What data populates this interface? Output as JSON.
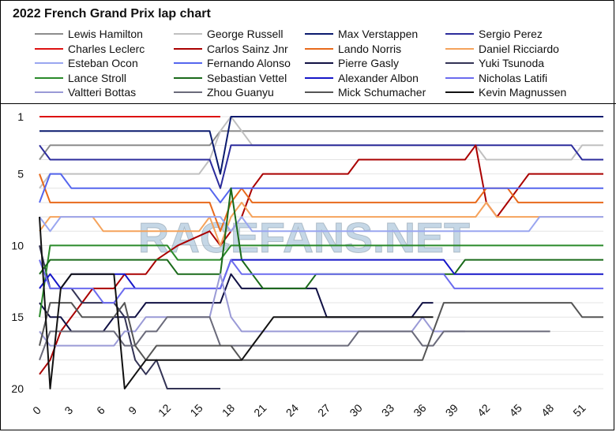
{
  "chart_data": {
    "type": "line",
    "title": "2022 French Grand Prix lap chart",
    "watermark": "RACEFANS.NET",
    "xlabel": "",
    "ylabel": "",
    "xlim": [
      0,
      53
    ],
    "ylim": [
      1,
      20
    ],
    "y_inverted": true,
    "x_ticks": [
      0,
      3,
      6,
      9,
      12,
      15,
      18,
      21,
      24,
      27,
      30,
      33,
      36,
      39,
      42,
      45,
      48,
      51
    ],
    "y_ticks": [
      1,
      5,
      10,
      15,
      20
    ],
    "grid": "horizontal",
    "legend_position": "top",
    "series": [
      {
        "name": "Lewis Hamilton",
        "color": "#8c8c8c",
        "points": [
          [
            0,
            4
          ],
          [
            1,
            3
          ],
          [
            16,
            3
          ],
          [
            17,
            2
          ],
          [
            53,
            2
          ]
        ]
      },
      {
        "name": "George Russell",
        "color": "#c0c0c0",
        "points": [
          [
            0,
            6
          ],
          [
            1,
            5
          ],
          [
            15,
            5
          ],
          [
            16,
            4
          ],
          [
            17,
            2
          ],
          [
            18,
            1
          ],
          [
            19,
            2
          ],
          [
            20,
            3
          ],
          [
            41,
            3
          ],
          [
            42,
            4
          ],
          [
            50,
            4
          ],
          [
            51,
            3
          ],
          [
            53,
            3
          ]
        ]
      },
      {
        "name": "Max Verstappen",
        "color": "#0a1a6e",
        "points": [
          [
            0,
            2
          ],
          [
            16,
            2
          ],
          [
            17,
            5
          ],
          [
            18,
            1
          ],
          [
            53,
            1
          ]
        ]
      },
      {
        "name": "Sergio Perez",
        "color": "#2c2c9c",
        "points": [
          [
            0,
            3
          ],
          [
            1,
            4
          ],
          [
            16,
            4
          ],
          [
            17,
            6
          ],
          [
            18,
            3
          ],
          [
            41,
            3
          ],
          [
            42,
            3
          ],
          [
            50,
            3
          ],
          [
            51,
            4
          ],
          [
            53,
            4
          ]
        ]
      },
      {
        "name": "Charles Leclerc",
        "color": "#dd1111",
        "points": [
          [
            0,
            1
          ],
          [
            17,
            1
          ]
        ]
      },
      {
        "name": "Carlos Sainz Jnr",
        "color": "#aa0000",
        "points": [
          [
            0,
            19
          ],
          [
            1,
            18
          ],
          [
            2,
            16
          ],
          [
            3,
            15
          ],
          [
            4,
            14
          ],
          [
            5,
            13
          ],
          [
            7,
            13
          ],
          [
            8,
            12
          ],
          [
            10,
            12
          ],
          [
            11,
            11
          ],
          [
            13,
            10
          ],
          [
            16,
            9
          ],
          [
            17,
            10
          ],
          [
            18,
            9
          ],
          [
            19,
            8
          ],
          [
            20,
            6
          ],
          [
            21,
            5
          ],
          [
            29,
            5
          ],
          [
            30,
            4
          ],
          [
            40,
            4
          ],
          [
            41,
            3
          ],
          [
            42,
            7
          ],
          [
            43,
            8
          ],
          [
            44,
            7
          ],
          [
            45,
            6
          ],
          [
            46,
            5
          ],
          [
            53,
            5
          ]
        ]
      },
      {
        "name": "Lando Norris",
        "color": "#e86a1c",
        "points": [
          [
            0,
            5
          ],
          [
            1,
            7
          ],
          [
            16,
            7
          ],
          [
            17,
            9
          ],
          [
            18,
            7
          ],
          [
            19,
            6
          ],
          [
            20,
            7
          ],
          [
            41,
            7
          ],
          [
            42,
            6
          ],
          [
            44,
            6
          ],
          [
            45,
            7
          ],
          [
            53,
            7
          ]
        ]
      },
      {
        "name": "Daniel Ricciardo",
        "color": "#f5a35c",
        "points": [
          [
            0,
            9
          ],
          [
            1,
            8
          ],
          [
            5,
            8
          ],
          [
            6,
            9
          ],
          [
            15,
            9
          ],
          [
            16,
            8
          ],
          [
            17,
            10
          ],
          [
            18,
            8
          ],
          [
            19,
            7
          ],
          [
            20,
            8
          ],
          [
            41,
            8
          ],
          [
            42,
            7
          ],
          [
            43,
            8
          ],
          [
            53,
            8
          ]
        ]
      },
      {
        "name": "Esteban Ocon",
        "color": "#9aa6f0",
        "points": [
          [
            0,
            8
          ],
          [
            1,
            9
          ],
          [
            2,
            8
          ],
          [
            17,
            8
          ],
          [
            18,
            9
          ],
          [
            19,
            8
          ],
          [
            20,
            9
          ],
          [
            46,
            9
          ],
          [
            47,
            8
          ],
          [
            53,
            8
          ]
        ]
      },
      {
        "name": "Fernando Alonso",
        "color": "#5566ee",
        "points": [
          [
            0,
            7
          ],
          [
            1,
            5
          ],
          [
            2,
            5
          ],
          [
            3,
            6
          ],
          [
            16,
            6
          ],
          [
            17,
            7
          ],
          [
            18,
            6
          ],
          [
            46,
            6
          ],
          [
            47,
            6
          ],
          [
            53,
            6
          ]
        ]
      },
      {
        "name": "Pierre Gasly",
        "color": "#111144",
        "points": [
          [
            0,
            14
          ],
          [
            1,
            15
          ],
          [
            2,
            15
          ],
          [
            3,
            16
          ],
          [
            6,
            16
          ],
          [
            7,
            15
          ],
          [
            9,
            15
          ],
          [
            10,
            14
          ],
          [
            17,
            14
          ],
          [
            18,
            12
          ],
          [
            19,
            13
          ],
          [
            26,
            13
          ],
          [
            27,
            15
          ],
          [
            35,
            15
          ],
          [
            36,
            14
          ],
          [
            37,
            14
          ]
        ]
      },
      {
        "name": "Yuki Tsunoda",
        "color": "#333355",
        "points": [
          [
            0,
            10
          ],
          [
            1,
            13
          ],
          [
            3,
            13
          ],
          [
            4,
            14
          ],
          [
            7,
            14
          ],
          [
            8,
            15
          ],
          [
            9,
            18
          ],
          [
            10,
            19
          ],
          [
            11,
            18
          ],
          [
            12,
            20
          ],
          [
            17,
            20
          ]
        ]
      },
      {
        "name": "Lance Stroll",
        "color": "#2a8a2a",
        "points": [
          [
            0,
            15
          ],
          [
            1,
            10
          ],
          [
            12,
            10
          ],
          [
            13,
            11
          ],
          [
            17,
            11
          ],
          [
            18,
            10
          ],
          [
            53,
            10
          ]
        ]
      },
      {
        "name": "Sebastian Vettel",
        "color": "#1a6a1a",
        "points": [
          [
            0,
            12
          ],
          [
            1,
            11
          ],
          [
            12,
            11
          ],
          [
            13,
            12
          ],
          [
            17,
            12
          ],
          [
            18,
            6
          ],
          [
            19,
            11
          ],
          [
            20,
            12
          ],
          [
            21,
            13
          ],
          [
            25,
            13
          ],
          [
            26,
            12
          ],
          [
            39,
            12
          ],
          [
            40,
            11
          ],
          [
            53,
            11
          ]
        ]
      },
      {
        "name": "Alexander Albon",
        "color": "#1616c8",
        "points": [
          [
            0,
            13
          ],
          [
            1,
            12
          ],
          [
            2,
            13
          ],
          [
            3,
            12
          ],
          [
            8,
            12
          ],
          [
            9,
            13
          ],
          [
            17,
            13
          ],
          [
            18,
            11
          ],
          [
            38,
            11
          ],
          [
            39,
            12
          ],
          [
            47,
            12
          ],
          [
            48,
            12
          ],
          [
            53,
            12
          ]
        ]
      },
      {
        "name": "Nicholas Latifi",
        "color": "#6b6bef",
        "points": [
          [
            0,
            11
          ],
          [
            1,
            13
          ],
          [
            5,
            13
          ],
          [
            6,
            14
          ],
          [
            7,
            14
          ],
          [
            8,
            13
          ],
          [
            17,
            13
          ],
          [
            18,
            11
          ],
          [
            19,
            12
          ],
          [
            38,
            12
          ],
          [
            39,
            13
          ],
          [
            53,
            13
          ]
        ]
      },
      {
        "name": "Valtteri Bottas",
        "color": "#9a9ad6",
        "points": [
          [
            0,
            16
          ],
          [
            1,
            17
          ],
          [
            7,
            17
          ],
          [
            8,
            16
          ],
          [
            9,
            16
          ],
          [
            10,
            15
          ],
          [
            16,
            15
          ],
          [
            17,
            12
          ],
          [
            18,
            15
          ],
          [
            19,
            16
          ],
          [
            35,
            16
          ],
          [
            36,
            15
          ],
          [
            37,
            16
          ],
          [
            40,
            16
          ]
        ]
      },
      {
        "name": "Zhou Guanyu",
        "color": "#6a6a7a",
        "points": [
          [
            0,
            18
          ],
          [
            1,
            16
          ],
          [
            7,
            16
          ],
          [
            8,
            17
          ],
          [
            9,
            17
          ],
          [
            10,
            16
          ],
          [
            11,
            16
          ],
          [
            12,
            15
          ],
          [
            16,
            15
          ],
          [
            17,
            17
          ],
          [
            29,
            17
          ],
          [
            30,
            16
          ],
          [
            35,
            16
          ],
          [
            36,
            17
          ],
          [
            37,
            17
          ],
          [
            38,
            16
          ],
          [
            48,
            16
          ]
        ]
      },
      {
        "name": "Mick Schumacher",
        "color": "#555555",
        "points": [
          [
            0,
            17
          ],
          [
            1,
            14
          ],
          [
            3,
            14
          ],
          [
            4,
            15
          ],
          [
            7,
            15
          ],
          [
            8,
            14
          ],
          [
            9,
            17
          ],
          [
            10,
            18
          ],
          [
            11,
            17
          ],
          [
            12,
            17
          ],
          [
            13,
            17
          ],
          [
            18,
            17
          ],
          [
            19,
            18
          ],
          [
            36,
            18
          ],
          [
            37,
            16
          ],
          [
            38,
            14
          ],
          [
            50,
            14
          ],
          [
            51,
            15
          ],
          [
            53,
            15
          ]
        ]
      },
      {
        "name": "Kevin Magnussen",
        "color": "#111111",
        "points": [
          [
            0,
            8
          ],
          [
            1,
            20
          ],
          [
            2,
            13
          ],
          [
            3,
            12
          ],
          [
            7,
            12
          ],
          [
            8,
            20
          ],
          [
            9,
            19
          ],
          [
            10,
            18
          ],
          [
            19,
            18
          ],
          [
            20,
            17
          ],
          [
            21,
            16
          ],
          [
            22,
            15
          ],
          [
            36,
            15
          ],
          [
            37,
            15
          ]
        ]
      }
    ]
  }
}
